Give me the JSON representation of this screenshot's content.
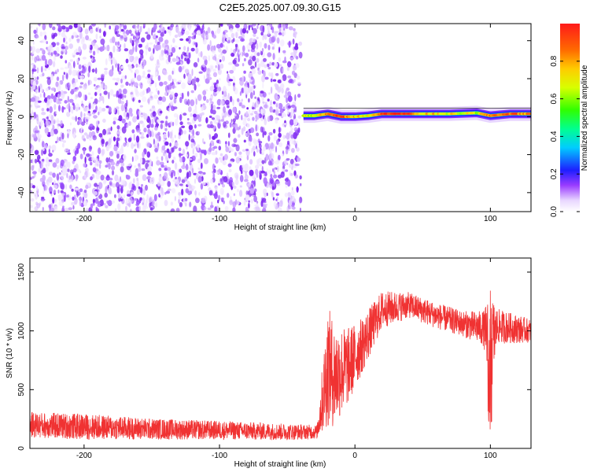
{
  "page": {
    "title": "C2E5.2025.007.09.30.G15"
  },
  "chart_data": [
    {
      "type": "heatmap",
      "title": "C2E5.2025.007.09.30.G15",
      "xlabel": "Height of straight line (km)",
      "ylabel": "Frequency (Hz)",
      "xlim": [
        -240,
        130
      ],
      "ylim": [
        -50,
        49
      ],
      "x_ticks": [
        -200,
        -100,
        0,
        100
      ],
      "y_ticks": [
        -40,
        -20,
        0,
        20,
        40
      ],
      "colorbar": {
        "label": "Normalized spectral amplitude",
        "range": [
          0,
          1
        ],
        "ticks": [
          "0.0",
          "0.2",
          "0.4",
          "0.6",
          "0.8"
        ],
        "tick_values": [
          0.0,
          0.2,
          0.4,
          0.6,
          0.8
        ],
        "colormap": "rainbow (white-violet-blue-cyan-green-yellow-orange-red)"
      },
      "noise_region_x": [
        -240,
        -40
      ],
      "signal_track": [
        {
          "x": -38,
          "y": 0.5,
          "amplitude": 0.65
        },
        {
          "x": -30,
          "y": 0.5,
          "amplitude": 0.6
        },
        {
          "x": -20,
          "y": 1.5,
          "amplitude": 0.85
        },
        {
          "x": -10,
          "y": 0.0,
          "amplitude": 0.95
        },
        {
          "x": 0,
          "y": 0.0,
          "amplitude": 0.75
        },
        {
          "x": 10,
          "y": 0.5,
          "amplitude": 0.7
        },
        {
          "x": 20,
          "y": 1.5,
          "amplitude": 0.95
        },
        {
          "x": 30,
          "y": 1.5,
          "amplitude": 1.0
        },
        {
          "x": 50,
          "y": 1.5,
          "amplitude": 0.75
        },
        {
          "x": 70,
          "y": 1.5,
          "amplitude": 0.7
        },
        {
          "x": 90,
          "y": 2.0,
          "amplitude": 0.65
        },
        {
          "x": 100,
          "y": 0.5,
          "amplitude": 0.85
        },
        {
          "x": 115,
          "y": 1.5,
          "amplitude": 0.9
        },
        {
          "x": 130,
          "y": 1.5,
          "amplitude": 0.8
        }
      ]
    },
    {
      "type": "line",
      "xlabel": "Height of straight line (km)",
      "ylabel": "SNR (10 * v/v)",
      "xlim": [
        -240,
        130
      ],
      "ylim": [
        0,
        1620
      ],
      "x_ticks": [
        -200,
        -100,
        0,
        100
      ],
      "y_ticks": [
        0,
        500,
        1000,
        1500
      ],
      "grid": false,
      "series": [
        {
          "color": "#f03232",
          "x": [
            -240,
            -200,
            -150,
            -100,
            -50,
            -28,
            -20,
            -15,
            -5,
            5,
            20,
            40,
            60,
            80,
            95,
            100,
            105,
            130
          ],
          "y": [
            200,
            185,
            165,
            155,
            140,
            140,
            700,
            620,
            700,
            870,
            1180,
            1220,
            1130,
            1060,
            1020,
            850,
            1040,
            1000
          ],
          "spread": [
            110,
            110,
            90,
            80,
            70,
            60,
            520,
            440,
            330,
            240,
            160,
            110,
            110,
            110,
            150,
            500,
            150,
            100
          ]
        }
      ]
    }
  ]
}
